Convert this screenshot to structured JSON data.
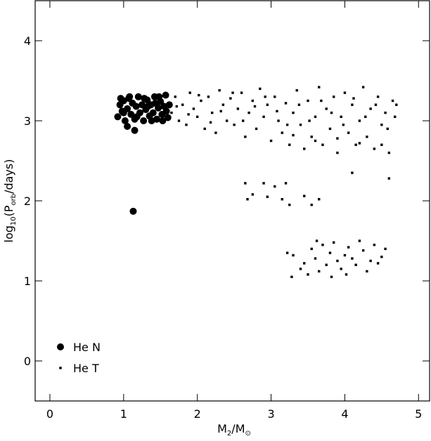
{
  "chart_data": {
    "type": "scatter",
    "xlabel": [
      "M",
      "2",
      "/M",
      "⊙"
    ],
    "ylabel": [
      "log",
      "10",
      "(P",
      "orb",
      "/days)"
    ],
    "xlim": [
      -0.2,
      5.15
    ],
    "ylim": [
      -0.5,
      4.5
    ],
    "xticks": [
      0,
      1,
      2,
      3,
      4,
      5
    ],
    "yticks": [
      0,
      1,
      2,
      3,
      4
    ],
    "legend": "lower left",
    "series": [
      {
        "name": "He N",
        "color": "#000000",
        "marker": "circle",
        "x": [
          0.92,
          0.95,
          0.98,
          1.0,
          1.02,
          1.05,
          1.07,
          1.1,
          1.12,
          1.15,
          1.17,
          1.2,
          1.22,
          1.25,
          1.27,
          1.3,
          1.32,
          1.35,
          1.37,
          1.4,
          1.42,
          1.45,
          1.47,
          1.5,
          1.52,
          1.55,
          1.57,
          1.6,
          1.62,
          1.0,
          1.08,
          1.18,
          1.28,
          1.38,
          1.48,
          1.58,
          0.96,
          1.33,
          1.43,
          1.53,
          1.05,
          1.15,
          1.13
        ],
        "y": [
          3.05,
          3.2,
          3.12,
          3.25,
          3.0,
          3.15,
          3.28,
          3.08,
          3.22,
          3.02,
          3.18,
          3.3,
          3.1,
          3.2,
          3.0,
          3.14,
          3.26,
          3.06,
          3.2,
          3.1,
          3.3,
          3.02,
          3.16,
          3.24,
          3.08,
          3.18,
          3.32,
          3.04,
          3.2,
          3.1,
          3.3,
          3.05,
          3.28,
          3.0,
          3.3,
          3.12,
          3.28,
          3.18,
          3.22,
          3.0,
          2.93,
          2.88,
          1.87
        ]
      },
      {
        "name": "He T",
        "color": "#000000",
        "marker": "square",
        "x": [
          1.65,
          1.7,
          1.75,
          1.8,
          1.85,
          1.9,
          1.95,
          2.0,
          2.05,
          2.1,
          2.15,
          2.2,
          2.25,
          2.3,
          2.35,
          2.4,
          2.45,
          2.5,
          2.55,
          2.6,
          2.65,
          2.7,
          2.75,
          2.8,
          2.85,
          2.9,
          2.95,
          3.0,
          3.05,
          3.1,
          3.15,
          3.2,
          3.25,
          3.3,
          3.35,
          3.4,
          3.45,
          3.5,
          3.55,
          3.6,
          3.65,
          3.7,
          3.75,
          3.8,
          3.85,
          3.9,
          3.95,
          4.0,
          4.05,
          4.1,
          4.15,
          4.2,
          4.25,
          4.3,
          4.35,
          4.4,
          4.45,
          4.5,
          4.55,
          4.6,
          4.65,
          4.7,
          1.72,
          1.88,
          2.02,
          2.18,
          2.32,
          2.48,
          2.62,
          2.78,
          2.92,
          3.08,
          3.22,
          3.38,
          3.52,
          3.68,
          3.82,
          3.98,
          4.12,
          4.28,
          4.42,
          4.58,
          4.68,
          3.3,
          3.6,
          3.9,
          4.2,
          4.5,
          4.1,
          4.6,
          2.65,
          2.68,
          2.75,
          2.9,
          2.95,
          3.05,
          3.15,
          3.2,
          3.25,
          3.45,
          3.55,
          3.65,
          3.22,
          3.28,
          3.3,
          3.4,
          3.45,
          3.5,
          3.55,
          3.6,
          3.62,
          3.65,
          3.7,
          3.75,
          3.8,
          3.82,
          3.85,
          3.9,
          3.95,
          4.0,
          4.02,
          4.05,
          4.1,
          4.15,
          4.2,
          4.25,
          4.3,
          4.35,
          4.4,
          4.45,
          4.5,
          4.55
        ],
        "y": [
          3.1,
          3.3,
          3.0,
          3.2,
          2.95,
          3.35,
          3.15,
          3.05,
          3.25,
          2.9,
          3.3,
          3.1,
          2.85,
          3.38,
          3.2,
          3.0,
          3.28,
          2.95,
          3.15,
          3.35,
          2.8,
          3.1,
          3.25,
          2.9,
          3.4,
          3.05,
          3.2,
          2.75,
          3.3,
          3.0,
          2.85,
          3.22,
          2.7,
          3.1,
          3.38,
          2.95,
          2.65,
          3.25,
          2.8,
          3.05,
          3.42,
          2.7,
          3.15,
          2.9,
          3.3,
          2.6,
          3.05,
          3.35,
          2.85,
          3.2,
          2.7,
          3.0,
          3.42,
          2.8,
          3.15,
          2.65,
          3.3,
          2.95,
          3.1,
          2.6,
          3.25,
          3.2,
          3.18,
          3.08,
          3.32,
          2.98,
          3.12,
          3.35,
          3.0,
          3.18,
          3.3,
          3.12,
          2.95,
          3.2,
          3.0,
          3.25,
          3.1,
          2.95,
          3.28,
          3.05,
          3.2,
          2.9,
          3.05,
          2.82,
          2.75,
          2.78,
          2.72,
          2.7,
          2.35,
          2.28,
          2.22,
          2.02,
          2.08,
          2.22,
          2.05,
          2.18,
          2.02,
          2.22,
          1.95,
          2.06,
          1.95,
          2.02,
          1.35,
          1.05,
          1.32,
          1.15,
          1.22,
          1.08,
          1.4,
          1.28,
          1.5,
          1.12,
          1.45,
          1.2,
          1.35,
          1.05,
          1.48,
          1.25,
          1.15,
          1.32,
          1.08,
          1.42,
          1.28,
          1.2,
          1.5,
          1.38,
          1.12,
          1.25,
          1.45,
          1.22,
          1.3,
          1.4
        ]
      }
    ]
  }
}
